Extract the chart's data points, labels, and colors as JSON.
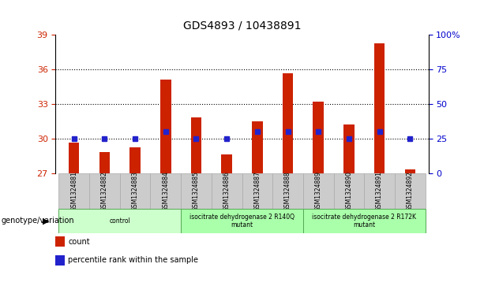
{
  "title": "GDS4893 / 10438891",
  "samples": [
    "GSM1324881",
    "GSM1324882",
    "GSM1324883",
    "GSM1324884",
    "GSM1324885",
    "GSM1324886",
    "GSM1324887",
    "GSM1324888",
    "GSM1324889",
    "GSM1324890",
    "GSM1324891",
    "GSM1324892"
  ],
  "count_values": [
    29.6,
    28.8,
    29.2,
    35.1,
    31.8,
    28.6,
    31.5,
    35.6,
    33.2,
    31.2,
    38.2,
    27.3
  ],
  "percentile_values": [
    25,
    25,
    25,
    30,
    25,
    25,
    30,
    30,
    30,
    25,
    30,
    25
  ],
  "ylim_left": [
    27,
    39
  ],
  "ylim_right": [
    0,
    100
  ],
  "yticks_left": [
    27,
    30,
    33,
    36,
    39
  ],
  "yticks_right": [
    0,
    25,
    50,
    75,
    100
  ],
  "bar_bottom": 27,
  "bar_color": "#cc2200",
  "dot_color": "#2222cc",
  "groups": [
    {
      "label": "control",
      "start": 0,
      "end": 4
    },
    {
      "label": "isocitrate dehydrogenase 2 R140Q\nmutant",
      "start": 4,
      "end": 8
    },
    {
      "label": "isocitrate dehydrogenase 2 R172K\nmutant",
      "start": 8,
      "end": 12
    }
  ],
  "group_colors": [
    "#ccffcc",
    "#aaffaa",
    "#aaffaa"
  ],
  "genotype_label": "genotype/variation",
  "legend_items": [
    {
      "label": "count",
      "color": "#cc2200"
    },
    {
      "label": "percentile rank within the sample",
      "color": "#2222cc"
    }
  ],
  "left_tick_color": "#cc2200",
  "right_tick_color": "#0000cc",
  "sample_bg_color": "#cccccc",
  "sample_border_color": "#aaaaaa",
  "group_border_color": "#55aa55"
}
